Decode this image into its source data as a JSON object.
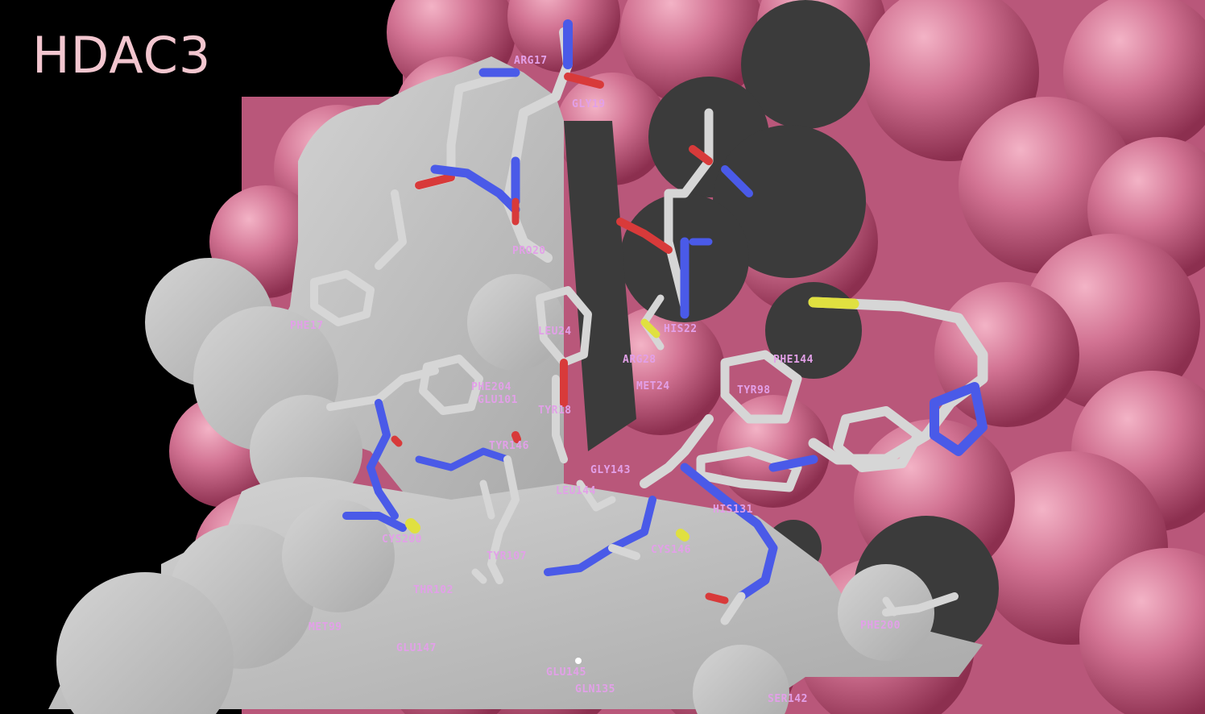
{
  "title": "HDAC3",
  "colors": {
    "background": "#000000",
    "protein_surface": "#c8607f",
    "clipped_surface": "#bdbdbd",
    "cavity_shadow": "#3a3a3a",
    "carbon": "#d6d6d6",
    "nitrogen": "#4a5ae8",
    "oxygen": "#d83a3a",
    "sulfur": "#e0e040",
    "residue_label": "#e2a0e8",
    "title_text": "#f2c6cf"
  },
  "residue_labels": [
    "ARG17",
    "GLY19",
    "PRO20",
    "PHE17",
    "LEU24",
    "HIS22",
    "ARG28",
    "MET24",
    "PHE144",
    "TYR98",
    "PHE204",
    "GLU101",
    "TYR18",
    "TYR146",
    "GLY143",
    "LEU144",
    "HIS131",
    "CYS200",
    "TYR107",
    "CYS146",
    "THR102",
    "PHE200",
    "MET99",
    "GLU147",
    "GLU145",
    "GLN135",
    "SER142"
  ]
}
